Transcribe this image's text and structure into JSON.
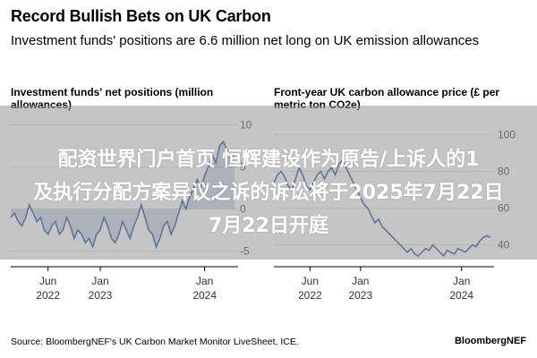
{
  "header": {
    "title": "Record Bullish Bets on UK Carbon",
    "subtitle": "Investment funds' positions are 6.6 million net long on UK emission allowances"
  },
  "chart_data": [
    {
      "type": "area",
      "title": "Investment funds' net positions (million allowances)",
      "xlabel": "",
      "ylabel": "",
      "x_ticks": [
        "Jun 2022",
        "Jan 2023",
        "Jan 2024"
      ],
      "y_ticks": [
        10,
        5,
        0,
        -5
      ],
      "ylim": [
        -6,
        11
      ],
      "series": [
        {
          "name": "Net positions",
          "x": [
            0,
            1,
            2,
            3,
            4,
            5,
            6,
            7,
            8,
            9,
            10,
            11,
            12,
            13,
            14,
            15,
            16,
            17,
            18,
            19,
            20,
            21,
            22,
            23,
            24,
            25,
            26,
            27,
            28,
            29,
            30,
            31,
            32,
            33,
            34,
            35,
            36,
            37,
            38,
            39,
            40,
            41,
            42,
            43,
            44,
            45,
            46,
            47,
            48,
            49,
            50,
            51,
            52,
            53,
            54,
            55,
            56,
            57,
            58,
            59,
            60
          ],
          "values": [
            -1.0,
            -0.5,
            -1.5,
            -2.0,
            -1.0,
            0.5,
            -0.5,
            -1.5,
            -1.0,
            -2.5,
            -3.0,
            -2.0,
            -1.5,
            -3.0,
            -2.5,
            -1.0,
            -2.0,
            -3.5,
            -2.5,
            -3.0,
            -4.0,
            -3.5,
            -4.5,
            -3.0,
            -2.5,
            -1.0,
            -2.0,
            -3.5,
            -4.0,
            -3.0,
            -1.5,
            -2.5,
            -3.5,
            -2.0,
            -1.0,
            0.5,
            -1.0,
            -2.5,
            -3.0,
            -4.5,
            -3.5,
            -2.0,
            -1.5,
            -3.0,
            -2.0,
            -0.5,
            1.0,
            0.0,
            1.5,
            2.5,
            3.5,
            2.5,
            4.0,
            5.0,
            6.5,
            5.5,
            7.5,
            8.0,
            7.0,
            6.0,
            6.6
          ]
        }
      ]
    },
    {
      "type": "line",
      "title": "Front-year UK carbon allowance price (£ per metric ton CO2e)",
      "xlabel": "",
      "ylabel": "",
      "x_ticks": [
        "Jun 2022",
        "Jan 2023",
        "Jan 2024"
      ],
      "y_ticks": [
        100,
        80,
        60,
        40
      ],
      "ylim": [
        32,
        110
      ],
      "series": [
        {
          "name": "Price",
          "x": [
            0,
            1,
            2,
            3,
            4,
            5,
            6,
            7,
            8,
            9,
            10,
            11,
            12,
            13,
            14,
            15,
            16,
            17,
            18,
            19,
            20,
            21,
            22,
            23,
            24,
            25,
            26,
            27,
            28,
            29,
            30,
            31,
            32,
            33,
            34,
            35,
            36,
            37,
            38,
            39,
            40,
            41,
            42,
            43,
            44,
            45,
            46,
            47,
            48,
            49,
            50,
            51,
            52,
            53,
            54,
            55,
            56,
            57,
            58,
            59,
            60
          ],
          "values": [
            74,
            78,
            80,
            77,
            72,
            70,
            76,
            82,
            78,
            72,
            70,
            74,
            78,
            80,
            76,
            80,
            82,
            78,
            84,
            86,
            82,
            78,
            74,
            70,
            66,
            62,
            60,
            56,
            52,
            54,
            50,
            48,
            46,
            44,
            42,
            40,
            38,
            36,
            38,
            35,
            34,
            36,
            38,
            37,
            40,
            38,
            36,
            34,
            37,
            36,
            35,
            38,
            37,
            36,
            38,
            40,
            39,
            42,
            44,
            45,
            44
          ]
        }
      ]
    }
  ],
  "overlay": {
    "line1": "配资世界门户首页 恒辉建设作为原告/上诉人的1",
    "line2": "及执行分配方案异议之诉的诉讼将于2025年7月22日",
    "line3": "7月22日开庭"
  },
  "footer": {
    "source": "Source: BloombergNEF's UK Carbon Market Monitor LiveSheet, ICE.",
    "brand": "BloombergNEF"
  },
  "colors": {
    "series": "#1f4fa0",
    "grid": "#dddddd",
    "axis": "#000000"
  }
}
